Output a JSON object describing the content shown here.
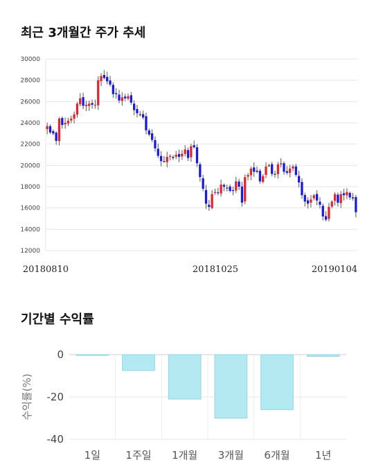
{
  "titles": {
    "price_trend": "최근 3개월간 주가 추세",
    "period_returns": "기간별 수익률"
  },
  "colors": {
    "up": "#e0262f",
    "down": "#1a1adf",
    "flat": "#333333",
    "bar_fill": "#b3eaf2",
    "bar_stroke": "#8fd6e2",
    "grid": "#e6e6e6"
  },
  "chart_data": [
    {
      "type": "candlestick",
      "title": "최근 3개월간 주가 추세",
      "ylim": [
        12000,
        30000
      ],
      "y_ticks": [
        30000,
        28000,
        26000,
        24000,
        22000,
        20000,
        18000,
        16000,
        14000,
        12000
      ],
      "y_tick_labels": [
        "30000",
        "28000",
        "26000",
        "24000",
        "22000",
        "20000",
        "18000",
        "16000",
        "14000",
        "12000"
      ],
      "x_tick_labels": [
        "20180810",
        "20181025",
        "20190104"
      ],
      "grid": true,
      "closes": [
        23700,
        23100,
        23000,
        22300,
        24400,
        23800,
        24000,
        24200,
        24400,
        24800,
        25800,
        26300,
        25600,
        25700,
        25800,
        25700,
        25700,
        28000,
        28400,
        28200,
        27900,
        27600,
        26700,
        26700,
        26100,
        26400,
        26300,
        26500,
        25900,
        25200,
        24900,
        24800,
        24500,
        23300,
        22900,
        22400,
        21600,
        20900,
        20400,
        20400,
        20800,
        20900,
        20700,
        21000,
        20800,
        21100,
        21500,
        20700,
        21800,
        21700,
        20200,
        18900,
        17800,
        16400,
        16100,
        17300,
        17500,
        17400,
        18200,
        18000,
        17900,
        17600,
        17600,
        18500,
        18000,
        16500,
        18900,
        19100,
        19700,
        19400,
        19400,
        18500,
        19000,
        19900,
        20000,
        19200,
        19200,
        20100,
        20200,
        19400,
        19300,
        19700,
        19900,
        19100,
        18400,
        17200,
        16600,
        16400,
        16800,
        17200,
        16700,
        16300,
        15200,
        14900,
        16100,
        16600,
        17300,
        16500,
        17300,
        17200,
        17500,
        17000,
        16900,
        15600
      ]
    },
    {
      "type": "bar",
      "title": "기간별 수익률",
      "categories": [
        "1일",
        "1주일",
        "1개월",
        "3개월",
        "6개월",
        "1년"
      ],
      "values": [
        0,
        -7.5,
        -21,
        -30,
        -26,
        -0.8
      ],
      "ylabel": "수익률(%)",
      "ylim": [
        -40,
        0
      ],
      "y_ticks": [
        0,
        -20,
        -40
      ],
      "y_tick_labels": [
        "0",
        "-20",
        "-40"
      ],
      "grid": true
    }
  ]
}
